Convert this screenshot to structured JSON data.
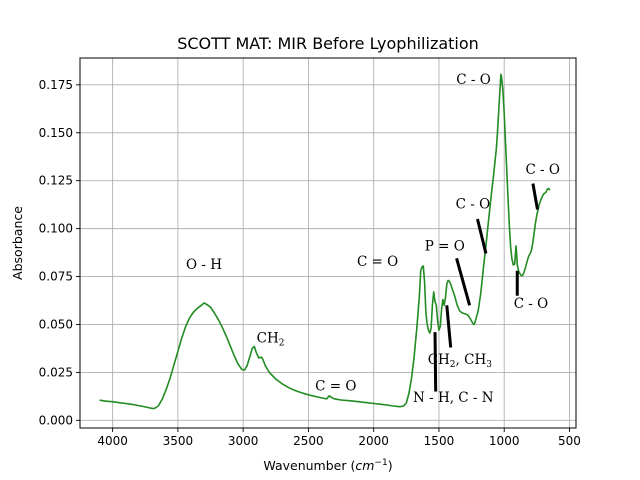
{
  "chart_data": {
    "type": "line",
    "title": "SCOTT MAT: MIR Before Lyophilization",
    "xlabel": "Wavenumber",
    "xlabel_unit": "cm",
    "xlabel_unit_exp": "−1",
    "ylabel": "Absorbance",
    "xlim": [
      4250,
      450
    ],
    "ylim": [
      -0.004,
      0.189
    ],
    "grid": true,
    "x_ticks": [
      4000,
      3500,
      3000,
      2500,
      2000,
      1500,
      1000,
      500
    ],
    "x_tick_labels": [
      "4000",
      "3500",
      "3000",
      "2500",
      "2000",
      "1500",
      "1000",
      "500"
    ],
    "y_ticks": [
      0.0,
      0.025,
      0.05,
      0.075,
      0.1,
      0.125,
      0.15,
      0.175
    ],
    "y_tick_labels": [
      "0.000",
      "0.025",
      "0.050",
      "0.075",
      "0.100",
      "0.125",
      "0.150",
      "0.175"
    ],
    "series": [
      {
        "color": "#228b22",
        "points": [
          [
            4100,
            0.0105
          ],
          [
            4050,
            0.01
          ],
          [
            4000,
            0.0097
          ],
          [
            3950,
            0.0092
          ],
          [
            3900,
            0.0088
          ],
          [
            3850,
            0.0083
          ],
          [
            3800,
            0.0077
          ],
          [
            3750,
            0.007
          ],
          [
            3700,
            0.0062
          ],
          [
            3680,
            0.0062
          ],
          [
            3650,
            0.0075
          ],
          [
            3620,
            0.011
          ],
          [
            3590,
            0.016
          ],
          [
            3560,
            0.022
          ],
          [
            3530,
            0.029
          ],
          [
            3500,
            0.036
          ],
          [
            3470,
            0.043
          ],
          [
            3440,
            0.049
          ],
          [
            3410,
            0.0535
          ],
          [
            3380,
            0.0565
          ],
          [
            3350,
            0.0585
          ],
          [
            3320,
            0.06
          ],
          [
            3300,
            0.0612
          ],
          [
            3280,
            0.0605
          ],
          [
            3250,
            0.059
          ],
          [
            3220,
            0.056
          ],
          [
            3190,
            0.0525
          ],
          [
            3160,
            0.0485
          ],
          [
            3130,
            0.044
          ],
          [
            3100,
            0.039
          ],
          [
            3070,
            0.034
          ],
          [
            3040,
            0.0295
          ],
          [
            3010,
            0.0265
          ],
          [
            2990,
            0.0262
          ],
          [
            2970,
            0.0285
          ],
          [
            2950,
            0.033
          ],
          [
            2930,
            0.0375
          ],
          [
            2915,
            0.0385
          ],
          [
            2900,
            0.0355
          ],
          [
            2880,
            0.0325
          ],
          [
            2860,
            0.033
          ],
          [
            2850,
            0.032
          ],
          [
            2830,
            0.0285
          ],
          [
            2800,
            0.025
          ],
          [
            2750,
            0.0215
          ],
          [
            2700,
            0.019
          ],
          [
            2650,
            0.017
          ],
          [
            2600,
            0.0155
          ],
          [
            2550,
            0.0143
          ],
          [
            2500,
            0.0133
          ],
          [
            2450,
            0.0125
          ],
          [
            2400,
            0.0117
          ],
          [
            2360,
            0.0112
          ],
          [
            2340,
            0.0128
          ],
          [
            2320,
            0.0118
          ],
          [
            2300,
            0.0112
          ],
          [
            2250,
            0.0106
          ],
          [
            2200,
            0.0103
          ],
          [
            2150,
            0.01
          ],
          [
            2100,
            0.0096
          ],
          [
            2050,
            0.0092
          ],
          [
            2000,
            0.0088
          ],
          [
            1950,
            0.0084
          ],
          [
            1900,
            0.008
          ],
          [
            1850,
            0.0075
          ],
          [
            1800,
            0.0071
          ],
          [
            1770,
            0.0075
          ],
          [
            1750,
            0.009
          ],
          [
            1730,
            0.014
          ],
          [
            1710,
            0.022
          ],
          [
            1690,
            0.033
          ],
          [
            1670,
            0.048
          ],
          [
            1650,
            0.065
          ],
          [
            1640,
            0.078
          ],
          [
            1630,
            0.08
          ],
          [
            1620,
            0.0805
          ],
          [
            1610,
            0.072
          ],
          [
            1600,
            0.056
          ],
          [
            1590,
            0.05
          ],
          [
            1580,
            0.047
          ],
          [
            1570,
            0.0455
          ],
          [
            1560,
            0.048
          ],
          [
            1550,
            0.06
          ],
          [
            1540,
            0.067
          ],
          [
            1530,
            0.062
          ],
          [
            1520,
            0.06
          ],
          [
            1510,
            0.052
          ],
          [
            1500,
            0.047
          ],
          [
            1490,
            0.049
          ],
          [
            1480,
            0.058
          ],
          [
            1470,
            0.063
          ],
          [
            1460,
            0.06
          ],
          [
            1450,
            0.064
          ],
          [
            1440,
            0.071
          ],
          [
            1430,
            0.073
          ],
          [
            1420,
            0.0725
          ],
          [
            1410,
            0.071
          ],
          [
            1400,
            0.069
          ],
          [
            1380,
            0.065
          ],
          [
            1360,
            0.06
          ],
          [
            1340,
            0.057
          ],
          [
            1320,
            0.056
          ],
          [
            1300,
            0.0555
          ],
          [
            1280,
            0.055
          ],
          [
            1260,
            0.053
          ],
          [
            1240,
            0.0505
          ],
          [
            1230,
            0.05
          ],
          [
            1220,
            0.052
          ],
          [
            1200,
            0.057
          ],
          [
            1180,
            0.066
          ],
          [
            1160,
            0.079
          ],
          [
            1140,
            0.091
          ],
          [
            1120,
            0.104
          ],
          [
            1100,
            0.117
          ],
          [
            1080,
            0.129
          ],
          [
            1060,
            0.142
          ],
          [
            1050,
            0.152
          ],
          [
            1040,
            0.164
          ],
          [
            1030,
            0.175
          ],
          [
            1025,
            0.1805
          ],
          [
            1020,
            0.179
          ],
          [
            1010,
            0.172
          ],
          [
            1000,
            0.16
          ],
          [
            990,
            0.145
          ],
          [
            980,
            0.13
          ],
          [
            970,
            0.115
          ],
          [
            960,
            0.101
          ],
          [
            950,
            0.09
          ],
          [
            940,
            0.084
          ],
          [
            930,
            0.081
          ],
          [
            920,
            0.0815
          ],
          [
            915,
            0.086
          ],
          [
            910,
            0.091
          ],
          [
            905,
            0.087
          ],
          [
            900,
            0.081
          ],
          [
            890,
            0.078
          ],
          [
            880,
            0.0765
          ],
          [
            870,
            0.0755
          ],
          [
            860,
            0.0755
          ],
          [
            850,
            0.077
          ],
          [
            840,
            0.079
          ],
          [
            830,
            0.0815
          ],
          [
            820,
            0.084
          ],
          [
            810,
            0.086
          ],
          [
            800,
            0.087
          ],
          [
            790,
            0.089
          ],
          [
            780,
            0.093
          ],
          [
            770,
            0.098
          ],
          [
            760,
            0.103
          ],
          [
            750,
            0.107
          ],
          [
            740,
            0.11
          ],
          [
            730,
            0.113
          ],
          [
            720,
            0.115
          ],
          [
            710,
            0.1165
          ],
          [
            700,
            0.118
          ],
          [
            690,
            0.1185
          ],
          [
            680,
            0.119
          ],
          [
            670,
            0.1205
          ],
          [
            660,
            0.121
          ],
          [
            650,
            0.12
          ]
        ]
      }
    ],
    "annotations": [
      {
        "text": "O - H",
        "x": 3300,
        "y": 0.079
      },
      {
        "text": "CH",
        "sub": "2",
        "x": 2790,
        "y": 0.0405
      },
      {
        "text": "C = O",
        "x": 2290,
        "y": 0.0155
      },
      {
        "text": "C = O",
        "x": 1970,
        "y": 0.0805
      },
      {
        "text": "N - H, C - N",
        "x": 1390,
        "y": 0.0095
      },
      {
        "text": "CH",
        "sub": "2",
        "text2": ", CH",
        "sub2": "3",
        "x": 1340,
        "y": 0.0295
      },
      {
        "text": "P = O",
        "x": 1455,
        "y": 0.0885
      },
      {
        "text": "C - O",
        "x": 1240,
        "y": 0.1105
      },
      {
        "text": "C - O",
        "x": 1235,
        "y": 0.1755
      },
      {
        "text": "C - O",
        "x": 705,
        "y": 0.1285
      },
      {
        "text": "C - O",
        "x": 795,
        "y": 0.0585
      }
    ],
    "leader_lines": [
      {
        "x1": 1530,
        "y1": 0.046,
        "x2": 1525,
        "y2": 0.015
      },
      {
        "x1": 1440,
        "y1": 0.06,
        "x2": 1410,
        "y2": 0.038
      },
      {
        "x1": 1365,
        "y1": 0.0845,
        "x2": 1265,
        "y2": 0.06
      },
      {
        "x1": 1205,
        "y1": 0.105,
        "x2": 1140,
        "y2": 0.087
      },
      {
        "x1": 780,
        "y1": 0.1235,
        "x2": 745,
        "y2": 0.11
      },
      {
        "x1": 900,
        "y1": 0.078,
        "x2": 900,
        "y2": 0.065
      }
    ]
  }
}
